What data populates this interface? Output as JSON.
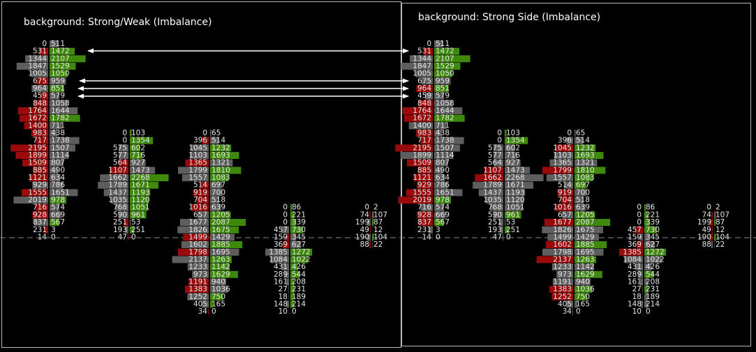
{
  "columns": [
    {
      "rows": [
        [
          0,
          511
        ],
        [
          531,
          1472
        ],
        [
          1344,
          2107
        ],
        [
          1847,
          1529
        ],
        [
          1005,
          1050
        ],
        [
          675,
          959
        ],
        [
          964,
          851
        ],
        [
          459,
          579
        ],
        [
          848,
          1058
        ],
        [
          1764,
          1644
        ],
        [
          1672,
          1782
        ],
        [
          1400,
          711
        ],
        [
          983,
          438
        ],
        [
          717,
          1738
        ],
        [
          2195,
          1507
        ],
        [
          1899,
          1114
        ],
        [
          1509,
          807
        ],
        [
          885,
          490
        ],
        [
          1121,
          634
        ],
        [
          929,
          786
        ],
        [
          1555,
          1651
        ],
        [
          2019,
          978
        ],
        [
          716,
          574
        ],
        [
          928,
          669
        ],
        [
          837,
          567
        ],
        [
          231,
          3
        ],
        [
          14,
          0
        ]
      ]
    },
    {
      "rows": [
        [
          0,
          103
        ],
        [
          0,
          1354
        ],
        [
          575,
          602
        ],
        [
          577,
          716
        ],
        [
          564,
          927
        ],
        [
          1107,
          1473
        ],
        [
          1662,
          2268
        ],
        [
          1789,
          1671
        ],
        [
          1437,
          1193
        ],
        [
          1035,
          1120
        ],
        [
          768,
          1051
        ],
        [
          590,
          961
        ],
        [
          251,
          53
        ],
        [
          193,
          251
        ],
        [
          47,
          0
        ]
      ]
    },
    {
      "rows": [
        [
          0,
          65
        ],
        [
          396,
          514
        ],
        [
          1045,
          1232
        ],
        [
          1103,
          1693
        ],
        [
          1365,
          1321
        ],
        [
          1799,
          1810
        ],
        [
          1557,
          1083
        ],
        [
          514,
          697
        ],
        [
          919,
          700
        ],
        [
          704,
          518
        ],
        [
          1016,
          639
        ],
        [
          657,
          1205
        ],
        [
          1677,
          2087
        ],
        [
          1826,
          1675
        ],
        [
          1499,
          1429
        ],
        [
          1602,
          1885
        ],
        [
          1798,
          1695
        ],
        [
          2137,
          1263
        ],
        [
          1233,
          1142
        ],
        [
          973,
          1629
        ],
        [
          1191,
          940
        ],
        [
          1383,
          1036
        ],
        [
          1252,
          750
        ],
        [
          405,
          165
        ],
        [
          34,
          0
        ]
      ]
    },
    {
      "rows": [
        [
          0,
          86
        ],
        [
          0,
          221
        ],
        [
          0,
          339
        ],
        [
          457,
          730
        ],
        [
          159,
          345
        ],
        [
          369,
          627
        ],
        [
          1385,
          1272
        ],
        [
          1084,
          1022
        ],
        [
          431,
          426
        ],
        [
          289,
          544
        ],
        [
          161,
          208
        ],
        [
          27,
          231
        ],
        [
          18,
          189
        ],
        [
          148,
          214
        ],
        [
          10,
          0
        ]
      ]
    },
    {
      "rows": [
        [
          0,
          2
        ],
        [
          74,
          107
        ],
        [
          199,
          87
        ],
        [
          49,
          12
        ],
        [
          190,
          104
        ],
        [
          88,
          22
        ]
      ]
    }
  ],
  "colors": {
    "r": "#9a0a0a",
    "g": "#3f8a0c",
    "n": "#5e5e5e"
  },
  "panels": [
    {
      "title": "background: Strong/Weak (Imbalance)",
      "styles": [
        [
          "nn",
          "rg",
          "ng",
          "ng",
          "ng",
          "rn",
          "ng",
          "rn",
          "rn",
          "rn",
          "rg",
          "rn",
          "rn",
          "rn",
          "rn",
          "rn",
          "rn",
          "rn",
          "rn",
          "nn",
          "rn",
          "ng",
          "rn",
          "rn",
          "ng",
          "rn",
          "nn"
        ],
        [
          "ng",
          "ng",
          "ng",
          "ng",
          "rn",
          "rn",
          "ng",
          "ng",
          "ng",
          "ng",
          "ng",
          "ng",
          "rn",
          "ng",
          "rn"
        ],
        [
          "nn",
          "rn",
          "ng",
          "ng",
          "rn",
          "ng",
          "ng",
          "rn",
          "rn",
          "rn",
          "rn",
          "ng",
          "ng",
          "ng",
          "rn",
          "ng",
          "rn",
          "ng",
          "ng",
          "ng",
          "rn",
          "rn",
          "ng",
          "ng",
          "rn"
        ],
        [
          "ng",
          "ng",
          "ng",
          "ng",
          "rn",
          "rn",
          "ng",
          "ng",
          "ng",
          "ng",
          "ng",
          "ng",
          "ng",
          "ng",
          "rn"
        ],
        [
          "nn",
          "rn",
          "ng",
          "rn",
          "ng",
          "rn"
        ]
      ]
    },
    {
      "title": "background: Strong Side (Imbalance)",
      "styles": [
        [
          "nn",
          "rg",
          "ng",
          "ng",
          "ng",
          "nn",
          "rg",
          "nn",
          "rn",
          "rn",
          "rg",
          "nn",
          "rn",
          "rn",
          "rn",
          "nn",
          "rn",
          "rn",
          "rn",
          "rn",
          "rn",
          "rg",
          "nn",
          "rn",
          "rg",
          "nn",
          "nn"
        ],
        [
          "ng",
          "ng",
          "nn",
          "nn",
          "nn",
          "rn",
          "rn",
          "nn",
          "nn",
          "nn",
          "nn",
          "ng",
          "nn",
          "ng",
          "nn"
        ],
        [
          "nn",
          "nn",
          "rg",
          "ng",
          "nn",
          "rg",
          "ng",
          "ng",
          "rn",
          "rn",
          "rn",
          "ng",
          "rg",
          "nn",
          "nn",
          "rg",
          "nn",
          "rg",
          "nn",
          "ng",
          "nn",
          "rg",
          "rg",
          "nn",
          "nn"
        ],
        [
          "ng",
          "ng",
          "ng",
          "rg",
          "nn",
          "rn",
          "rg",
          "nn",
          "nn",
          "ng",
          "nn",
          "ng",
          "nn",
          "nn",
          "nn"
        ],
        [
          "nn",
          "rn",
          "rg",
          "rn",
          "rg",
          "nn"
        ]
      ]
    }
  ]
}
